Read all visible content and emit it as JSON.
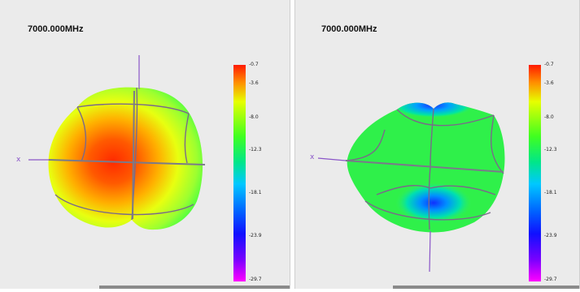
{
  "panels": [
    {
      "frequency_label": "7000.000MHz",
      "axis_label": "x",
      "colorbar": {
        "ticks": [
          "-0.7",
          "-3.6",
          "-8.0",
          "-12.3",
          "-18.1",
          "-23.9",
          "-29.7"
        ]
      }
    },
    {
      "frequency_label": "7000.000MHz",
      "axis_label": "x",
      "colorbar": {
        "ticks": [
          "-0.7",
          "-3.6",
          "-8.0",
          "-12.3",
          "-18.1",
          "-23.9",
          "-29.7"
        ]
      }
    }
  ],
  "colors": {
    "background": "#ebebeb",
    "axis_line": "#8a55c8",
    "mesh_line": "#7a6a8a"
  }
}
